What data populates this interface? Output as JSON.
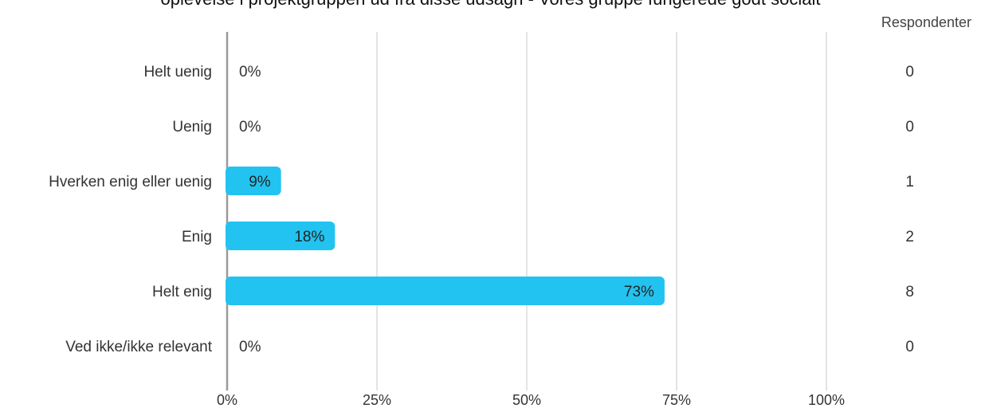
{
  "chart_data": {
    "type": "bar",
    "orientation": "horizontal",
    "title": "oplevelse i projektgruppen ud fra disse udsagn - Vores gruppe fungerede godt socialt",
    "respondents_header": "Respondenter",
    "categories": [
      "Helt uenig",
      "Uenig",
      "Hverken enig eller uenig",
      "Enig",
      "Helt enig",
      "Ved ikke/ikke relevant"
    ],
    "values": [
      0,
      0,
      9,
      18,
      73,
      0
    ],
    "value_labels": [
      "0%",
      "0%",
      "9%",
      "18%",
      "73%",
      "0%"
    ],
    "respondents": [
      0,
      0,
      1,
      2,
      8,
      0
    ],
    "xlim": [
      0,
      100
    ],
    "xticks": [
      0,
      25,
      50,
      75,
      100
    ],
    "xtick_labels": [
      "0%",
      "25%",
      "50%",
      "75%",
      "100%"
    ],
    "grid": true,
    "colors": {
      "bar": "#22c3f0",
      "grid": "#c8c8c8",
      "axis": "#9a9a9a",
      "text": "#333333"
    }
  }
}
